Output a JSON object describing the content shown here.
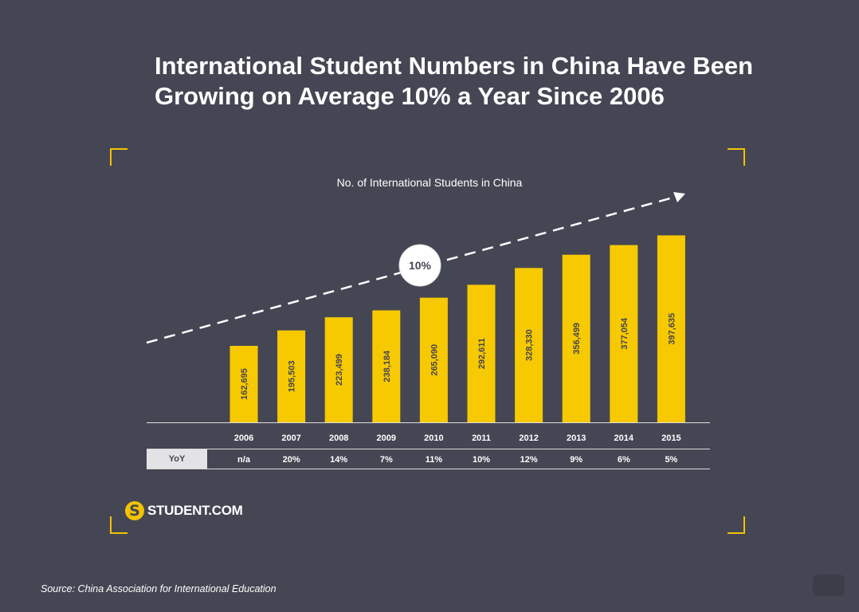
{
  "title": "International Student Numbers in China Have Been Growing on Average 10% a Year Since 2006",
  "source": "Source: China Association for International Education",
  "logo": {
    "text": "STUDENT.COM",
    "icon": "student-s-logo-icon"
  },
  "colors": {
    "background": "#454654",
    "bar": "#f7c900",
    "accent": "#f3c300",
    "text": "#ffffff"
  },
  "chart_data": {
    "type": "bar",
    "title": "No. of International Students in China",
    "categories": [
      "2006",
      "2007",
      "2008",
      "2009",
      "2010",
      "2011",
      "2012",
      "2013",
      "2014",
      "2015"
    ],
    "values": [
      162695,
      195503,
      223499,
      238184,
      265090,
      292611,
      328330,
      356499,
      377054,
      397635
    ],
    "data_labels": [
      "162,695",
      "195,503",
      "223,499",
      "238,184",
      "265,090",
      "292,611",
      "328,330",
      "356,499",
      "377,054",
      "397,635"
    ],
    "ylim": [
      0,
      400000
    ],
    "trend_annotation": "10%",
    "yoy": {
      "label": "YoY",
      "values": [
        "n/a",
        "20%",
        "14%",
        "7%",
        "11%",
        "10%",
        "12%",
        "9%",
        "6%",
        "5%"
      ]
    },
    "grid": false,
    "legend": "none"
  }
}
